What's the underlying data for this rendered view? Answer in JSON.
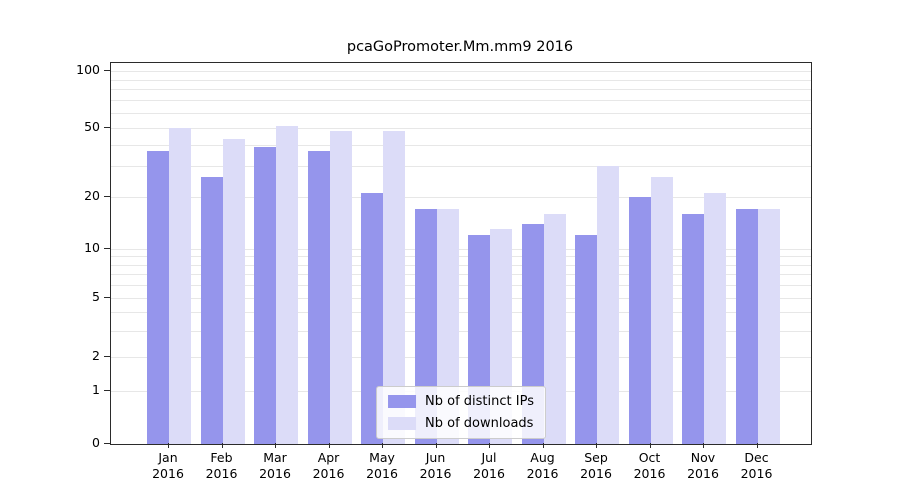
{
  "chart_data": {
    "type": "bar",
    "title": "pcaGoPromoter.Mm.mm9 2016",
    "year": "2016",
    "categories": [
      "Jan",
      "Feb",
      "Mar",
      "Apr",
      "May",
      "Jun",
      "Jul",
      "Aug",
      "Sep",
      "Oct",
      "Nov",
      "Dec"
    ],
    "series": [
      {
        "name": "Nb of distinct IPs",
        "color": "#9595ec",
        "values": [
          37,
          26,
          39,
          37,
          21,
          17,
          12,
          14,
          12,
          20,
          16,
          17
        ]
      },
      {
        "name": "Nb of downloads",
        "color": "#dcdcf8",
        "values": [
          50,
          43,
          51,
          48,
          48,
          17,
          13,
          16,
          30,
          26,
          21,
          17
        ]
      }
    ],
    "y_axis": {
      "scale": "log-like",
      "tick_values": [
        0,
        1,
        2,
        5,
        10,
        20,
        50,
        100
      ],
      "minor_grid_values": [
        1,
        2,
        3,
        4,
        5,
        6,
        7,
        8,
        9,
        10,
        20,
        30,
        40,
        50,
        60,
        70,
        80,
        90,
        100
      ],
      "range_top": 100,
      "range_bottom": 0
    },
    "x_axis": {
      "label_line2": "2016"
    },
    "legend": {
      "position": "bottom-center",
      "entries": [
        "Nb of distinct IPs",
        "Nb of downloads"
      ]
    },
    "grid": "horizontal",
    "colors": {
      "bar_distinct_ips": "#9595ec",
      "bar_downloads": "#dcdcf8",
      "gridline": "#e7e7e7",
      "axis": "#2b2b2b"
    }
  }
}
